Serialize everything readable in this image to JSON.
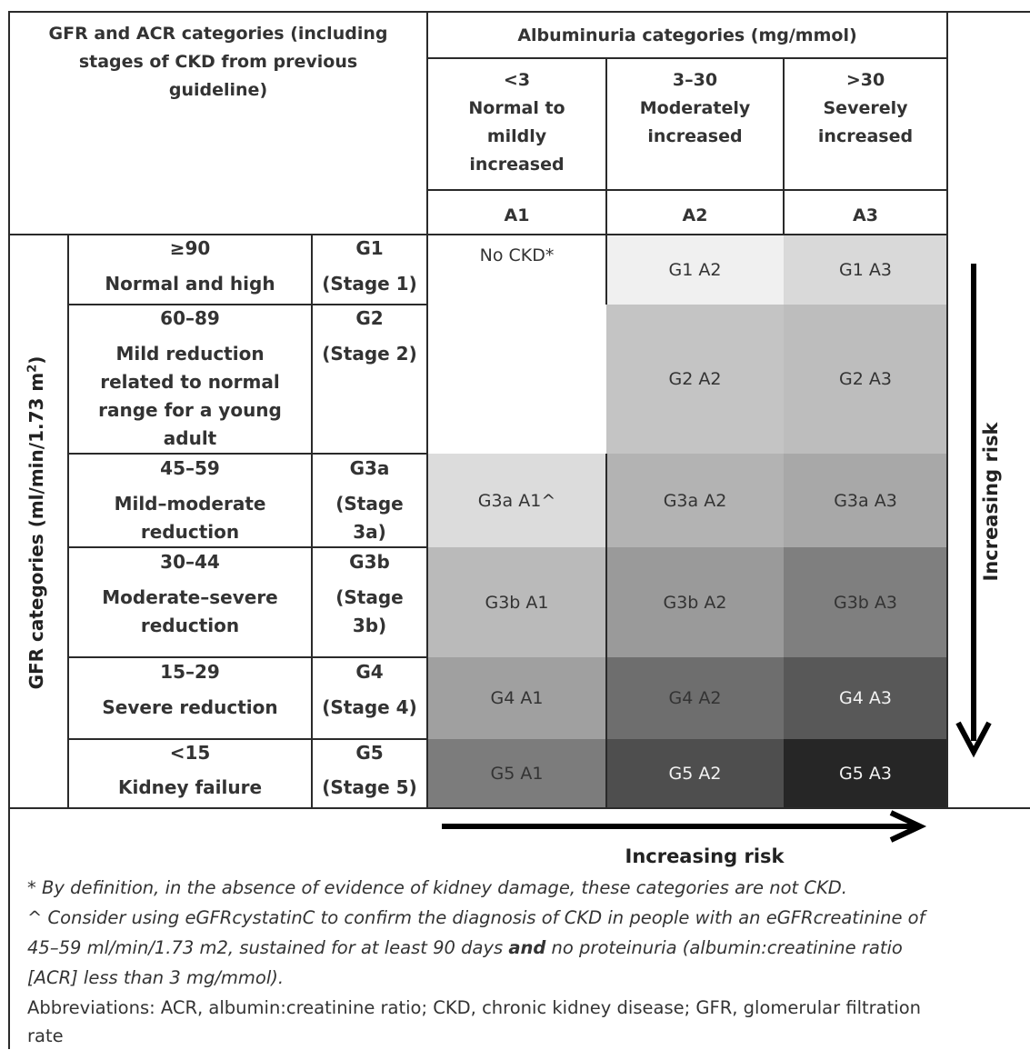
{
  "header": {
    "left_title": [
      "GFR and ACR categories (including",
      "stages of CKD from previous",
      "guideline)"
    ],
    "albuminuria_title": "Albuminuria categories (mg/mmol)",
    "albumin_cols": [
      {
        "lines": [
          "<3",
          "Normal to",
          "mildly",
          "increased"
        ],
        "code": "A1"
      },
      {
        "lines": [
          "3–30",
          "Moderately",
          "increased"
        ],
        "code": "A2"
      },
      {
        "lines": [
          ">30",
          "Severely",
          "increased"
        ],
        "code": "A3"
      }
    ]
  },
  "side_label": "GFR categories (ml/min/1.73 m",
  "side_label_sup": "2",
  "side_label_end": ")",
  "gfr_rows": [
    {
      "range": "≥90",
      "desc": [
        "Normal and high"
      ],
      "code": "G1",
      "stage": [
        "(Stage 1)"
      ]
    },
    {
      "range": "60–89",
      "desc": [
        "Mild reduction",
        "related to normal",
        "range for a young",
        "adult"
      ],
      "code": "G2",
      "stage": [
        "(Stage 2)"
      ]
    },
    {
      "range": "45–59",
      "desc": [
        "Mild–moderate",
        "reduction"
      ],
      "code": "G3a",
      "stage": [
        "(Stage",
        "3a)"
      ]
    },
    {
      "range": "30–44",
      "desc": [
        "Moderate–severe",
        "reduction"
      ],
      "code": "G3b",
      "stage": [
        "(Stage",
        "3b)"
      ]
    },
    {
      "range": "15–29",
      "desc": [
        "Severe reduction"
      ],
      "code": "G4",
      "stage": [
        "(Stage 4)"
      ]
    },
    {
      "range": "<15",
      "desc": [
        "Kidney failure"
      ],
      "code": "G5",
      "stage": [
        "(Stage 5)"
      ]
    }
  ],
  "grid": {
    "no_ckd": "No CKD*",
    "cells": [
      {
        "label": "G1 A2",
        "color": "#f0f0f0"
      },
      {
        "label": "G1 A3",
        "color": "#d9d9d9"
      },
      {
        "label": "G2 A2",
        "color": "#c4c4c4"
      },
      {
        "label": "G2 A3",
        "color": "#bdbdbd"
      },
      {
        "label": "G3a A1^",
        "color": "#dcdcdc"
      },
      {
        "label": "G3a A2",
        "color": "#b3b3b3"
      },
      {
        "label": "G3a A3",
        "color": "#a8a8a8"
      },
      {
        "label": "G3b A1",
        "color": "#bababa"
      },
      {
        "label": "G3b A2",
        "color": "#9a9a9a"
      },
      {
        "label": "G3b A3",
        "color": "#7f7f7f"
      },
      {
        "label": "G4 A1",
        "color": "#a0a0a0"
      },
      {
        "label": "G4 A2",
        "color": "#6e6e6e"
      },
      {
        "label": "G4 A3",
        "color": "#585858"
      },
      {
        "label": "G5 A1",
        "color": "#7c7c7c"
      },
      {
        "label": "G5 A2",
        "color": "#4e4e4e"
      },
      {
        "label": "G5 A3",
        "color": "#262626"
      }
    ]
  },
  "risk_vertical": "Increasing risk",
  "risk_horizontal": "Increasing risk",
  "footnotes": {
    "star": "* By definition, in the absence of evidence of kidney damage, these categories are not CKD.",
    "caret_1": "^ Consider using eGFRcystatinC to confirm the diagnosis of CKD in people with an eGFRcreatinine of",
    "caret_2a": "45–59 ml/min/1.73 m2, sustained for at least 90 days ",
    "caret_2b": "and",
    "caret_2c": " no proteinuria (albumin:creatinine ratio",
    "caret_3": "[ACR] less than 3 mg/mmol).",
    "abbrev_1": "Abbreviations: ACR, albumin:creatinine ratio; CKD, chronic kidney disease; GFR, glomerular filtration",
    "abbrev_2": "rate"
  }
}
